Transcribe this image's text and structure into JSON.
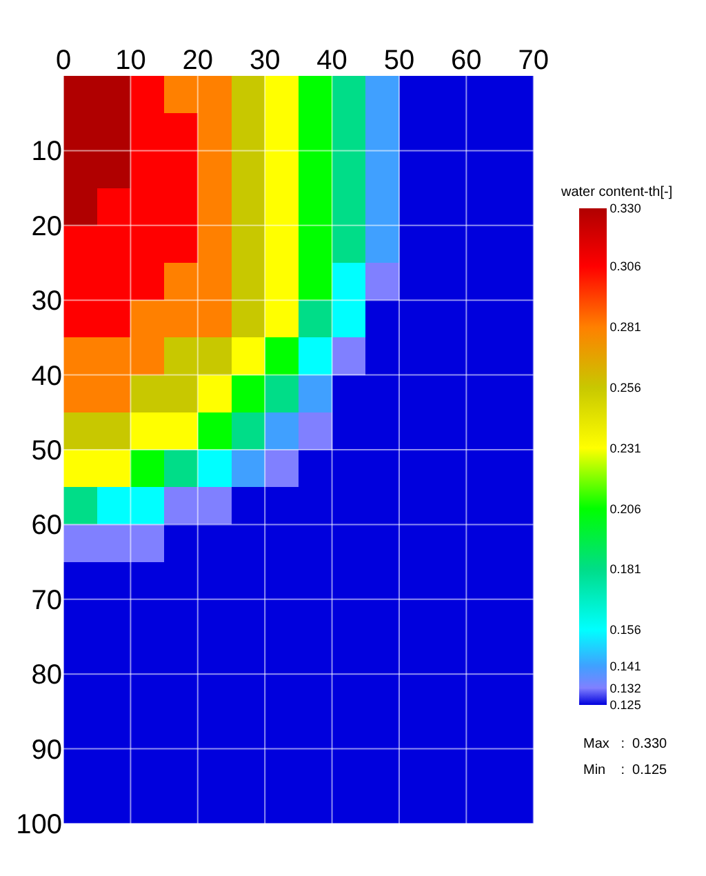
{
  "chart_data": {
    "type": "heatmap",
    "clabel": "water content-th[-]",
    "x": [
      2.5,
      7.5,
      12.5,
      17.5,
      22.5,
      27.5,
      32.5,
      37.5,
      42.5,
      47.5,
      52.5,
      57.5,
      62.5,
      67.5
    ],
    "y": [
      2.5,
      7.5,
      12.5,
      17.5,
      22.5,
      27.5,
      32.5,
      37.5,
      42.5,
      47.5,
      52.5,
      57.5,
      62.5,
      67.5,
      72.5,
      77.5,
      82.5,
      87.5,
      92.5,
      97.5
    ],
    "xlim": [
      0,
      70
    ],
    "xticks": [
      0,
      10,
      20,
      30,
      40,
      50,
      60,
      70
    ],
    "ylim": [
      100,
      0
    ],
    "yticks": [
      10,
      20,
      30,
      40,
      50,
      60,
      70,
      80,
      90,
      100
    ],
    "clim": [
      0.125,
      0.33
    ],
    "cticks": [
      0.125,
      0.132,
      0.141,
      0.156,
      0.181,
      0.206,
      0.231,
      0.256,
      0.281,
      0.306,
      {
        "value": 0.33,
        "label": "0.330"
      }
    ],
    "colors": [
      "#0000dd",
      "#8080ff",
      "#40a0ff",
      "#00ffff",
      "#00dd88",
      "#00ff00",
      "#ffff00",
      "#c8c800",
      "#ff8000",
      "#ff0000",
      "#b00000"
    ],
    "grid": true,
    "cells": [
      [
        0.33,
        0.33,
        0.306,
        0.281,
        0.281,
        0.256,
        0.231,
        0.206,
        0.181,
        0.141,
        0.125,
        0.125,
        0.125,
        0.125
      ],
      [
        0.33,
        0.33,
        0.306,
        0.306,
        0.281,
        0.256,
        0.231,
        0.206,
        0.181,
        0.141,
        0.125,
        0.125,
        0.125,
        0.125
      ],
      [
        0.33,
        0.33,
        0.306,
        0.306,
        0.281,
        0.256,
        0.231,
        0.206,
        0.181,
        0.141,
        0.125,
        0.125,
        0.125,
        0.125
      ],
      [
        0.33,
        0.306,
        0.306,
        0.306,
        0.281,
        0.256,
        0.231,
        0.206,
        0.181,
        0.141,
        0.125,
        0.125,
        0.125,
        0.125
      ],
      [
        0.306,
        0.306,
        0.306,
        0.306,
        0.281,
        0.256,
        0.231,
        0.206,
        0.181,
        0.141,
        0.125,
        0.125,
        0.125,
        0.125
      ],
      [
        0.306,
        0.306,
        0.306,
        0.281,
        0.281,
        0.256,
        0.231,
        0.206,
        0.156,
        0.132,
        0.125,
        0.125,
        0.125,
        0.125
      ],
      [
        0.306,
        0.306,
        0.281,
        0.281,
        0.281,
        0.256,
        0.231,
        0.181,
        0.156,
        0.125,
        0.125,
        0.125,
        0.125,
        0.125
      ],
      [
        0.281,
        0.281,
        0.281,
        0.256,
        0.256,
        0.231,
        0.206,
        0.156,
        0.132,
        0.125,
        0.125,
        0.125,
        0.125,
        0.125
      ],
      [
        0.281,
        0.281,
        0.256,
        0.256,
        0.231,
        0.206,
        0.181,
        0.141,
        0.125,
        0.125,
        0.125,
        0.125,
        0.125,
        0.125
      ],
      [
        0.256,
        0.256,
        0.231,
        0.231,
        0.206,
        0.181,
        0.141,
        0.132,
        0.125,
        0.125,
        0.125,
        0.125,
        0.125,
        0.125
      ],
      [
        0.231,
        0.231,
        0.206,
        0.181,
        0.156,
        0.141,
        0.132,
        0.125,
        0.125,
        0.125,
        0.125,
        0.125,
        0.125,
        0.125
      ],
      [
        0.181,
        0.156,
        0.156,
        0.132,
        0.132,
        0.125,
        0.125,
        0.125,
        0.125,
        0.125,
        0.125,
        0.125,
        0.125,
        0.125
      ],
      [
        0.132,
        0.132,
        0.132,
        0.125,
        0.125,
        0.125,
        0.125,
        0.125,
        0.125,
        0.125,
        0.125,
        0.125,
        0.125,
        0.125
      ],
      [
        0.125,
        0.125,
        0.125,
        0.125,
        0.125,
        0.125,
        0.125,
        0.125,
        0.125,
        0.125,
        0.125,
        0.125,
        0.125,
        0.125
      ],
      [
        0.125,
        0.125,
        0.125,
        0.125,
        0.125,
        0.125,
        0.125,
        0.125,
        0.125,
        0.125,
        0.125,
        0.125,
        0.125,
        0.125
      ],
      [
        0.125,
        0.125,
        0.125,
        0.125,
        0.125,
        0.125,
        0.125,
        0.125,
        0.125,
        0.125,
        0.125,
        0.125,
        0.125,
        0.125
      ],
      [
        0.125,
        0.125,
        0.125,
        0.125,
        0.125,
        0.125,
        0.125,
        0.125,
        0.125,
        0.125,
        0.125,
        0.125,
        0.125,
        0.125
      ],
      [
        0.125,
        0.125,
        0.125,
        0.125,
        0.125,
        0.125,
        0.125,
        0.125,
        0.125,
        0.125,
        0.125,
        0.125,
        0.125,
        0.125
      ],
      [
        0.125,
        0.125,
        0.125,
        0.125,
        0.125,
        0.125,
        0.125,
        0.125,
        0.125,
        0.125,
        0.125,
        0.125,
        0.125,
        0.125
      ],
      [
        0.125,
        0.125,
        0.125,
        0.125,
        0.125,
        0.125,
        0.125,
        0.125,
        0.125,
        0.125,
        0.125,
        0.125,
        0.125,
        0.125
      ]
    ],
    "annotations": [
      "Max   :  0.330",
      "Min    :  0.125"
    ]
  }
}
